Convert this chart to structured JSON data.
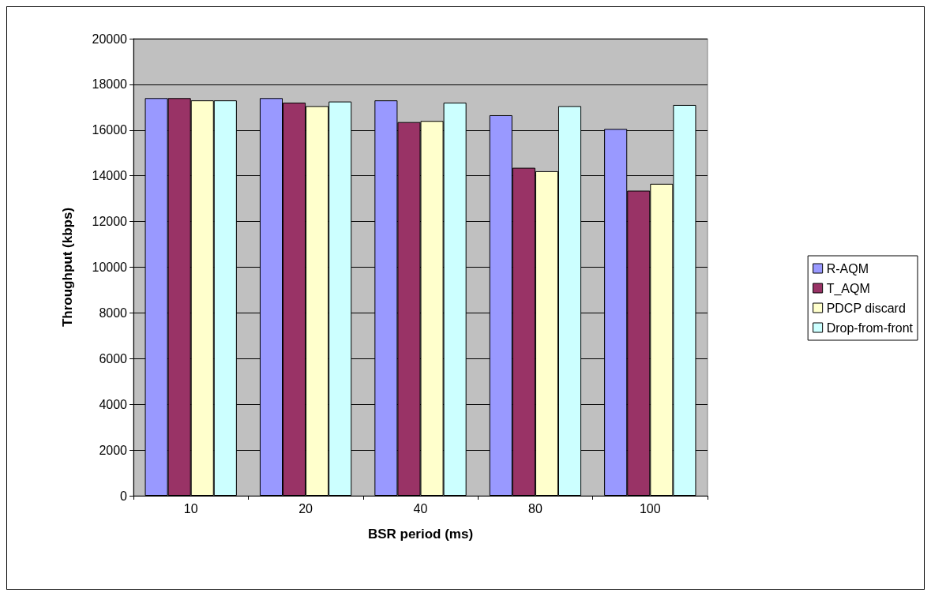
{
  "chart_data": {
    "type": "bar",
    "xlabel": "BSR period (ms)",
    "ylabel": "Throughput (kbps)",
    "categories": [
      "10",
      "20",
      "40",
      "80",
      "100"
    ],
    "series": [
      {
        "name": "R-AQM",
        "color": "#9999ff",
        "values": [
          17400,
          17400,
          17300,
          16650,
          16050
        ]
      },
      {
        "name": "T_AQM",
        "color": "#993366",
        "values": [
          17400,
          17200,
          16350,
          14350,
          13350
        ]
      },
      {
        "name": "PDCP discard",
        "color": "#ffffcc",
        "values": [
          17300,
          17050,
          16400,
          14200,
          13650
        ]
      },
      {
        "name": "Drop-from-front",
        "color": "#ccffff",
        "values": [
          17300,
          17250,
          17200,
          17050,
          17100
        ]
      }
    ],
    "ylim": [
      0,
      20000
    ],
    "yticks": [
      0,
      2000,
      4000,
      6000,
      8000,
      10000,
      12000,
      14000,
      16000,
      18000,
      20000
    ],
    "grid": "y",
    "legend": "right"
  }
}
